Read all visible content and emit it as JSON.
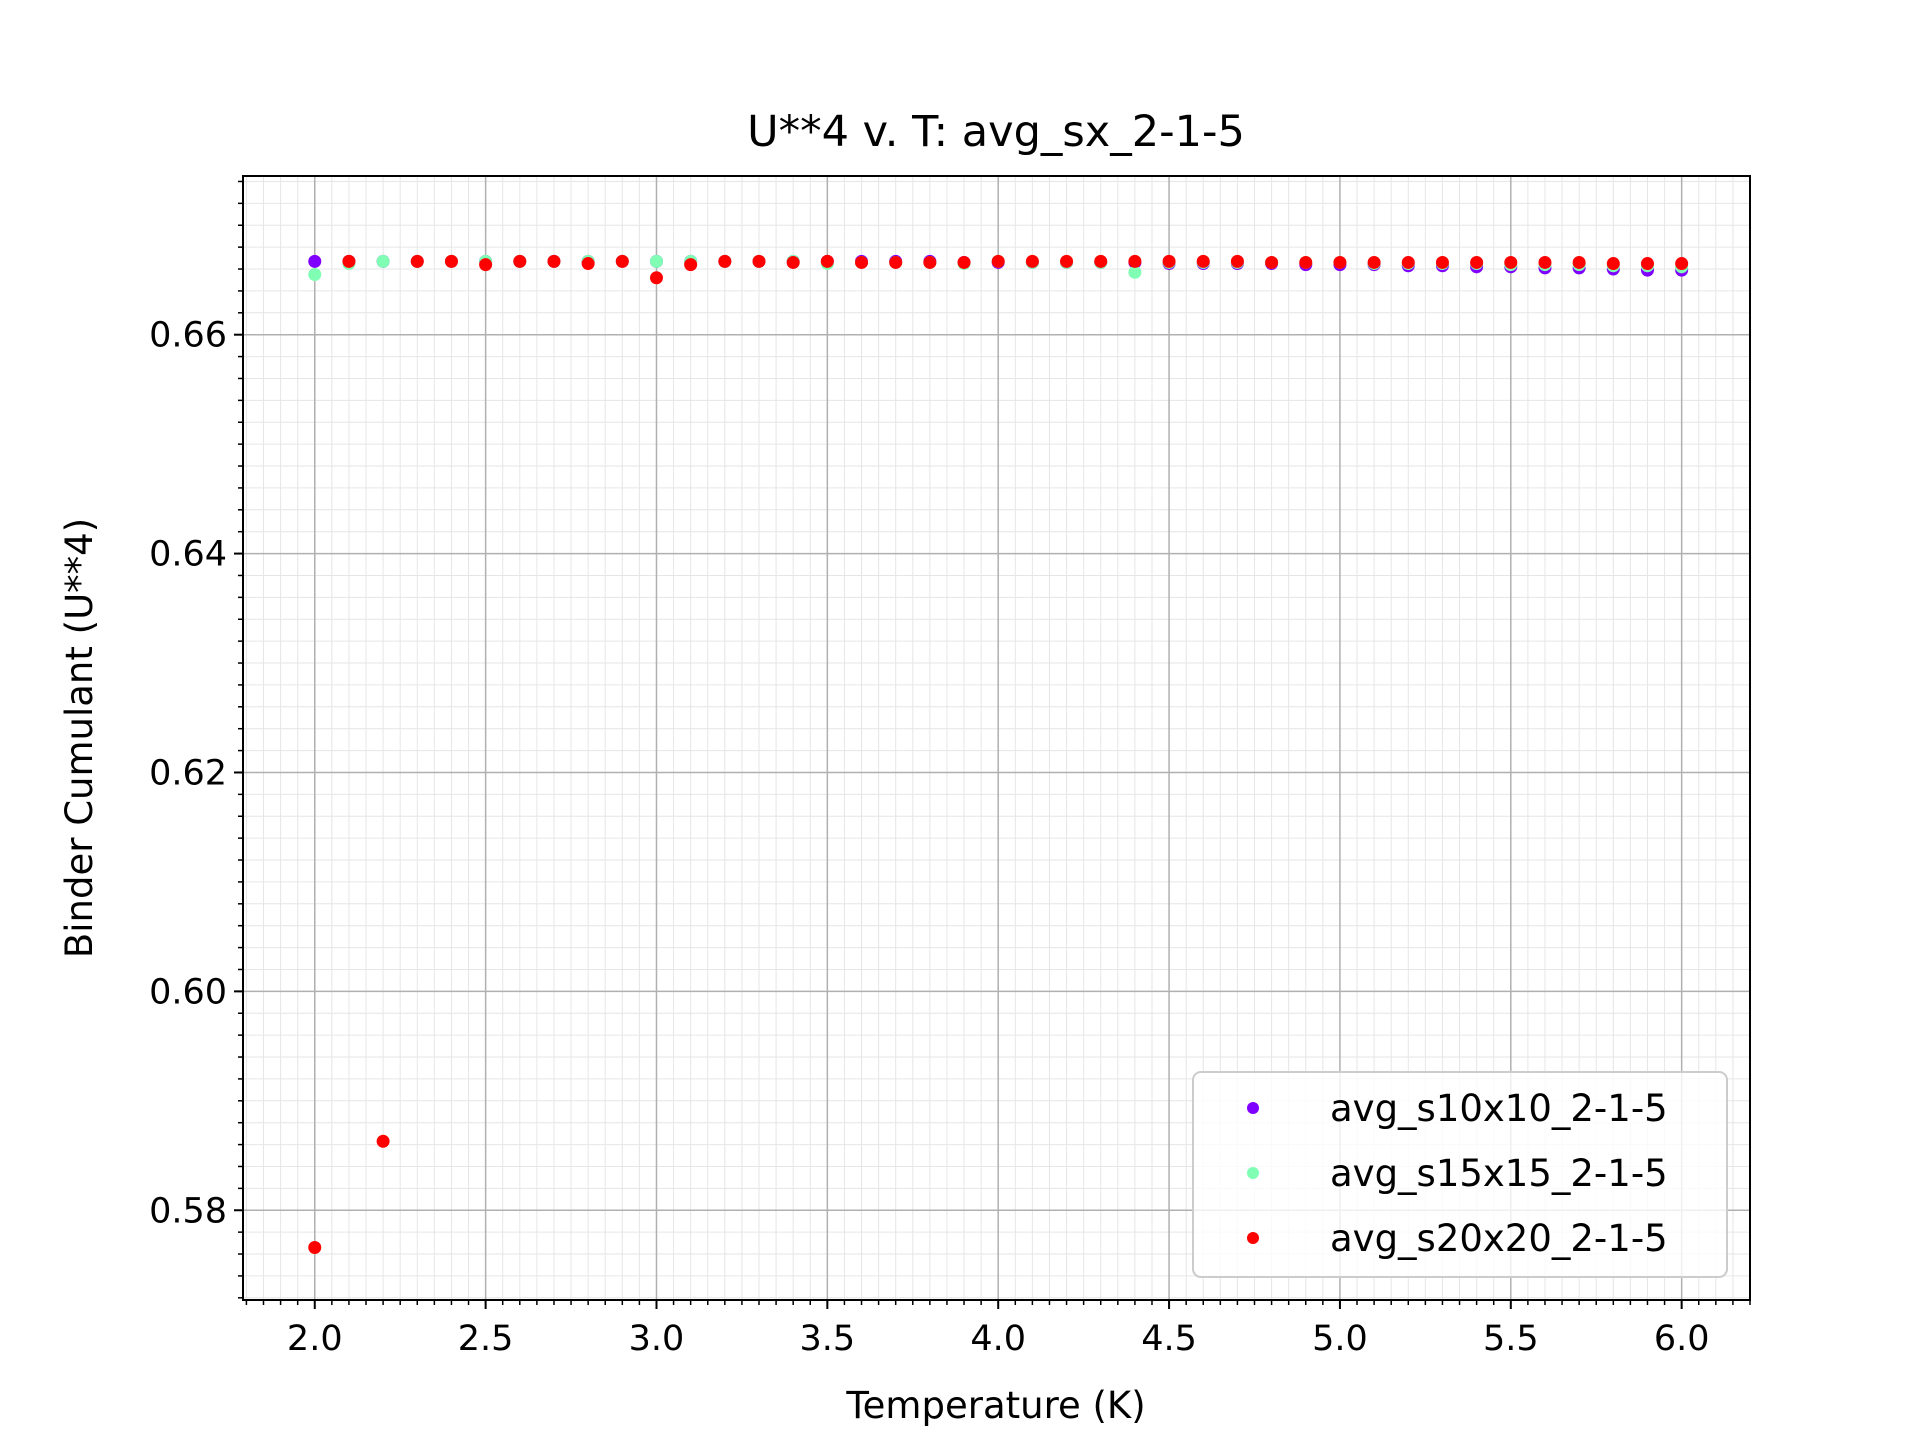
{
  "chart_data": {
    "type": "scatter",
    "title": "U**4 v. T: avg_sx_2-1-5",
    "xlabel": "Temperature (K)",
    "ylabel": "Binder Cumulant (U**4)",
    "xlim": [
      1.79,
      6.2
    ],
    "ylim": [
      0.5718,
      0.6745
    ],
    "xticks": [
      2.0,
      2.5,
      3.0,
      3.5,
      4.0,
      4.5,
      5.0,
      5.5,
      6.0
    ],
    "xtick_labels": [
      "2.0",
      "2.5",
      "3.0",
      "3.5",
      "4.0",
      "4.5",
      "5.0",
      "5.5",
      "6.0"
    ],
    "yticks": [
      0.58,
      0.6,
      0.62,
      0.64,
      0.66
    ],
    "ytick_labels": [
      "0.58",
      "0.60",
      "0.62",
      "0.64",
      "0.66"
    ],
    "grid": true,
    "minor_grid": true,
    "legend_position": "lower-right",
    "x": [
      2.0,
      2.1,
      2.2,
      2.3,
      2.4,
      2.5,
      2.6,
      2.7,
      2.8,
      2.9,
      3.0,
      3.1,
      3.2,
      3.3,
      3.4,
      3.5,
      3.6,
      3.7,
      3.8,
      3.9,
      4.0,
      4.1,
      4.2,
      4.3,
      4.4,
      4.5,
      4.6,
      4.7,
      4.8,
      4.9,
      5.0,
      5.1,
      5.2,
      5.3,
      5.4,
      5.5,
      5.6,
      5.7,
      5.8,
      5.9,
      6.0
    ],
    "series": [
      {
        "name": "avg_s10x10_2-1-5",
        "color": "#8000ff",
        "values": [
          0.6667,
          0.6667,
          0.6667,
          0.6667,
          0.6667,
          0.6667,
          0.6667,
          0.6667,
          0.6667,
          0.6667,
          0.6667,
          0.6667,
          0.6667,
          0.6667,
          0.6667,
          0.6667,
          0.6667,
          0.6667,
          0.6667,
          0.6666,
          0.6666,
          0.6666,
          0.6666,
          0.6666,
          0.6666,
          0.6665,
          0.6665,
          0.6665,
          0.6665,
          0.6664,
          0.6664,
          0.6664,
          0.6663,
          0.6663,
          0.6662,
          0.6662,
          0.6661,
          0.6661,
          0.666,
          0.6659,
          0.6659
        ]
      },
      {
        "name": "avg_s15x15_2-1-5",
        "color": "#80ffb4",
        "values": [
          0.6655,
          0.6665,
          0.6667,
          0.6667,
          0.6667,
          0.6667,
          0.6667,
          0.6667,
          0.6667,
          0.6667,
          0.6667,
          0.6667,
          0.6667,
          0.6667,
          0.6667,
          0.6665,
          0.6666,
          0.6666,
          0.6666,
          0.6665,
          0.6667,
          0.6666,
          0.6666,
          0.6666,
          0.6657,
          0.6666,
          0.6666,
          0.6666,
          0.6666,
          0.6666,
          0.6666,
          0.6665,
          0.6665,
          0.6665,
          0.6665,
          0.6664,
          0.6664,
          0.6664,
          0.6663,
          0.6663,
          0.6662
        ]
      },
      {
        "name": "avg_s20x20_2-1-5",
        "color": "#ff0000",
        "values": [
          0.5766,
          0.6667,
          0.5863,
          0.6667,
          0.6667,
          0.6664,
          0.6667,
          0.6667,
          0.6665,
          0.6667,
          0.6652,
          0.6664,
          0.6667,
          0.6667,
          0.6666,
          0.6667,
          0.6666,
          0.6666,
          0.6666,
          0.6666,
          0.6667,
          0.6667,
          0.6667,
          0.6667,
          0.6667,
          0.6667,
          0.6667,
          0.6667,
          0.6666,
          0.6666,
          0.6666,
          0.6666,
          0.6666,
          0.6666,
          0.6666,
          0.6666,
          0.6666,
          0.6666,
          0.6665,
          0.6665,
          0.6665
        ]
      }
    ]
  }
}
